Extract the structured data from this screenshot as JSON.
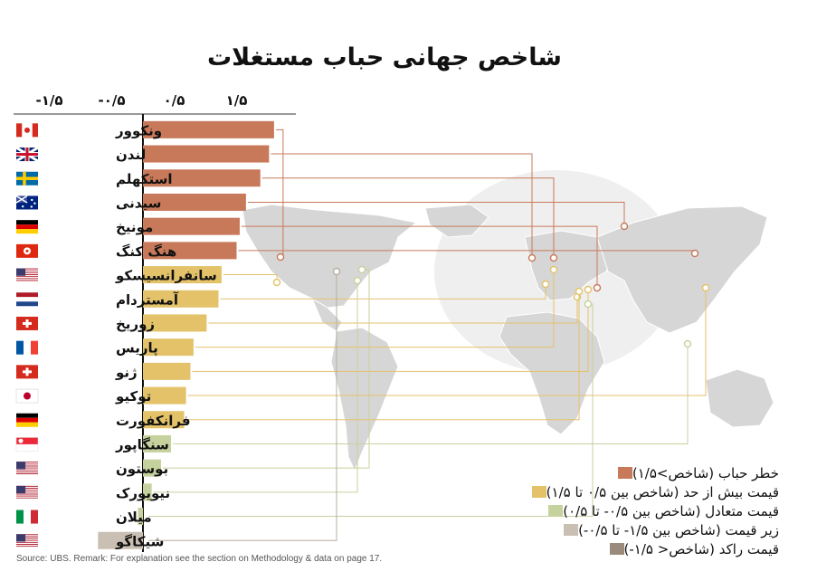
{
  "title": "شاخص جهانی حباب مستغلات",
  "source": "Source: UBS. Remark: For explanation see the section on Methodology & data on page 17.",
  "colors": {
    "bubble": "#c8795a",
    "overvalued": "#e3c26a",
    "fair": "#c6d29e",
    "undervalued": "#c9bfb2",
    "depressed": "#9b8b7c"
  },
  "legend": [
    {
      "label": "خطر حباب (شاخص>۱/۵)",
      "color": "#c8795a"
    },
    {
      "label": "قیمت بیش از حد (شاخص بین ۰/۵ تا ۱/۵)",
      "color": "#e3c26a"
    },
    {
      "label": "قیمت متعادل (شاخص بین ۰/۵- تا ۰/۵)",
      "color": "#c6d29e"
    },
    {
      "label": "زیر قیمت (شاخص بین ۱/۵- تا ۰/۵-)",
      "color": "#c9bfb2"
    },
    {
      "label": "قیمت راکد (شاخص< ۱/۵-)",
      "color": "#9b8b7c"
    }
  ],
  "chart_data": {
    "type": "bar",
    "orientation": "horizontal",
    "title": "شاخص جهانی حباب مستغلات",
    "xlim": [
      -2.1,
      2.35
    ],
    "xticks": [
      -1.5,
      -0.5,
      0.5,
      1.5
    ],
    "xtick_labels": [
      "-۱/۵",
      "-۰/۵",
      "۰/۵",
      "۱/۵"
    ],
    "categories": [
      "ونکوور",
      "لندن",
      "استکهلم",
      "سیدنی",
      "مونیخ",
      "هنگ کنگ",
      "سانفرانسیسکو",
      "آمستردام",
      "زوریخ",
      "پاریس",
      "ژنو",
      "توکیو",
      "فرانکفورت",
      "سنگاپور",
      "بوستون",
      "نیویورک",
      "میلان",
      "شیکاگو"
    ],
    "values": [
      2.1,
      2.02,
      1.88,
      1.65,
      1.55,
      1.5,
      1.26,
      1.21,
      1.02,
      0.81,
      0.76,
      0.69,
      0.66,
      0.45,
      0.29,
      0.14,
      -0.08,
      -0.72
    ],
    "classes": [
      "bubble",
      "bubble",
      "bubble",
      "bubble",
      "bubble",
      "bubble",
      "overvalued",
      "overvalued",
      "overvalued",
      "overvalued",
      "overvalued",
      "overvalued",
      "overvalued",
      "fair",
      "fair",
      "fair",
      "fair",
      "undervalued"
    ],
    "flags": [
      "canada",
      "uk",
      "sweden",
      "australia",
      "germany",
      "hongkong",
      "usa",
      "netherlands",
      "switzerland",
      "france",
      "switzerland",
      "japan",
      "germany",
      "singapore",
      "usa",
      "usa",
      "italy",
      "usa"
    ],
    "grid": false,
    "legend_position": "bottom-right"
  }
}
